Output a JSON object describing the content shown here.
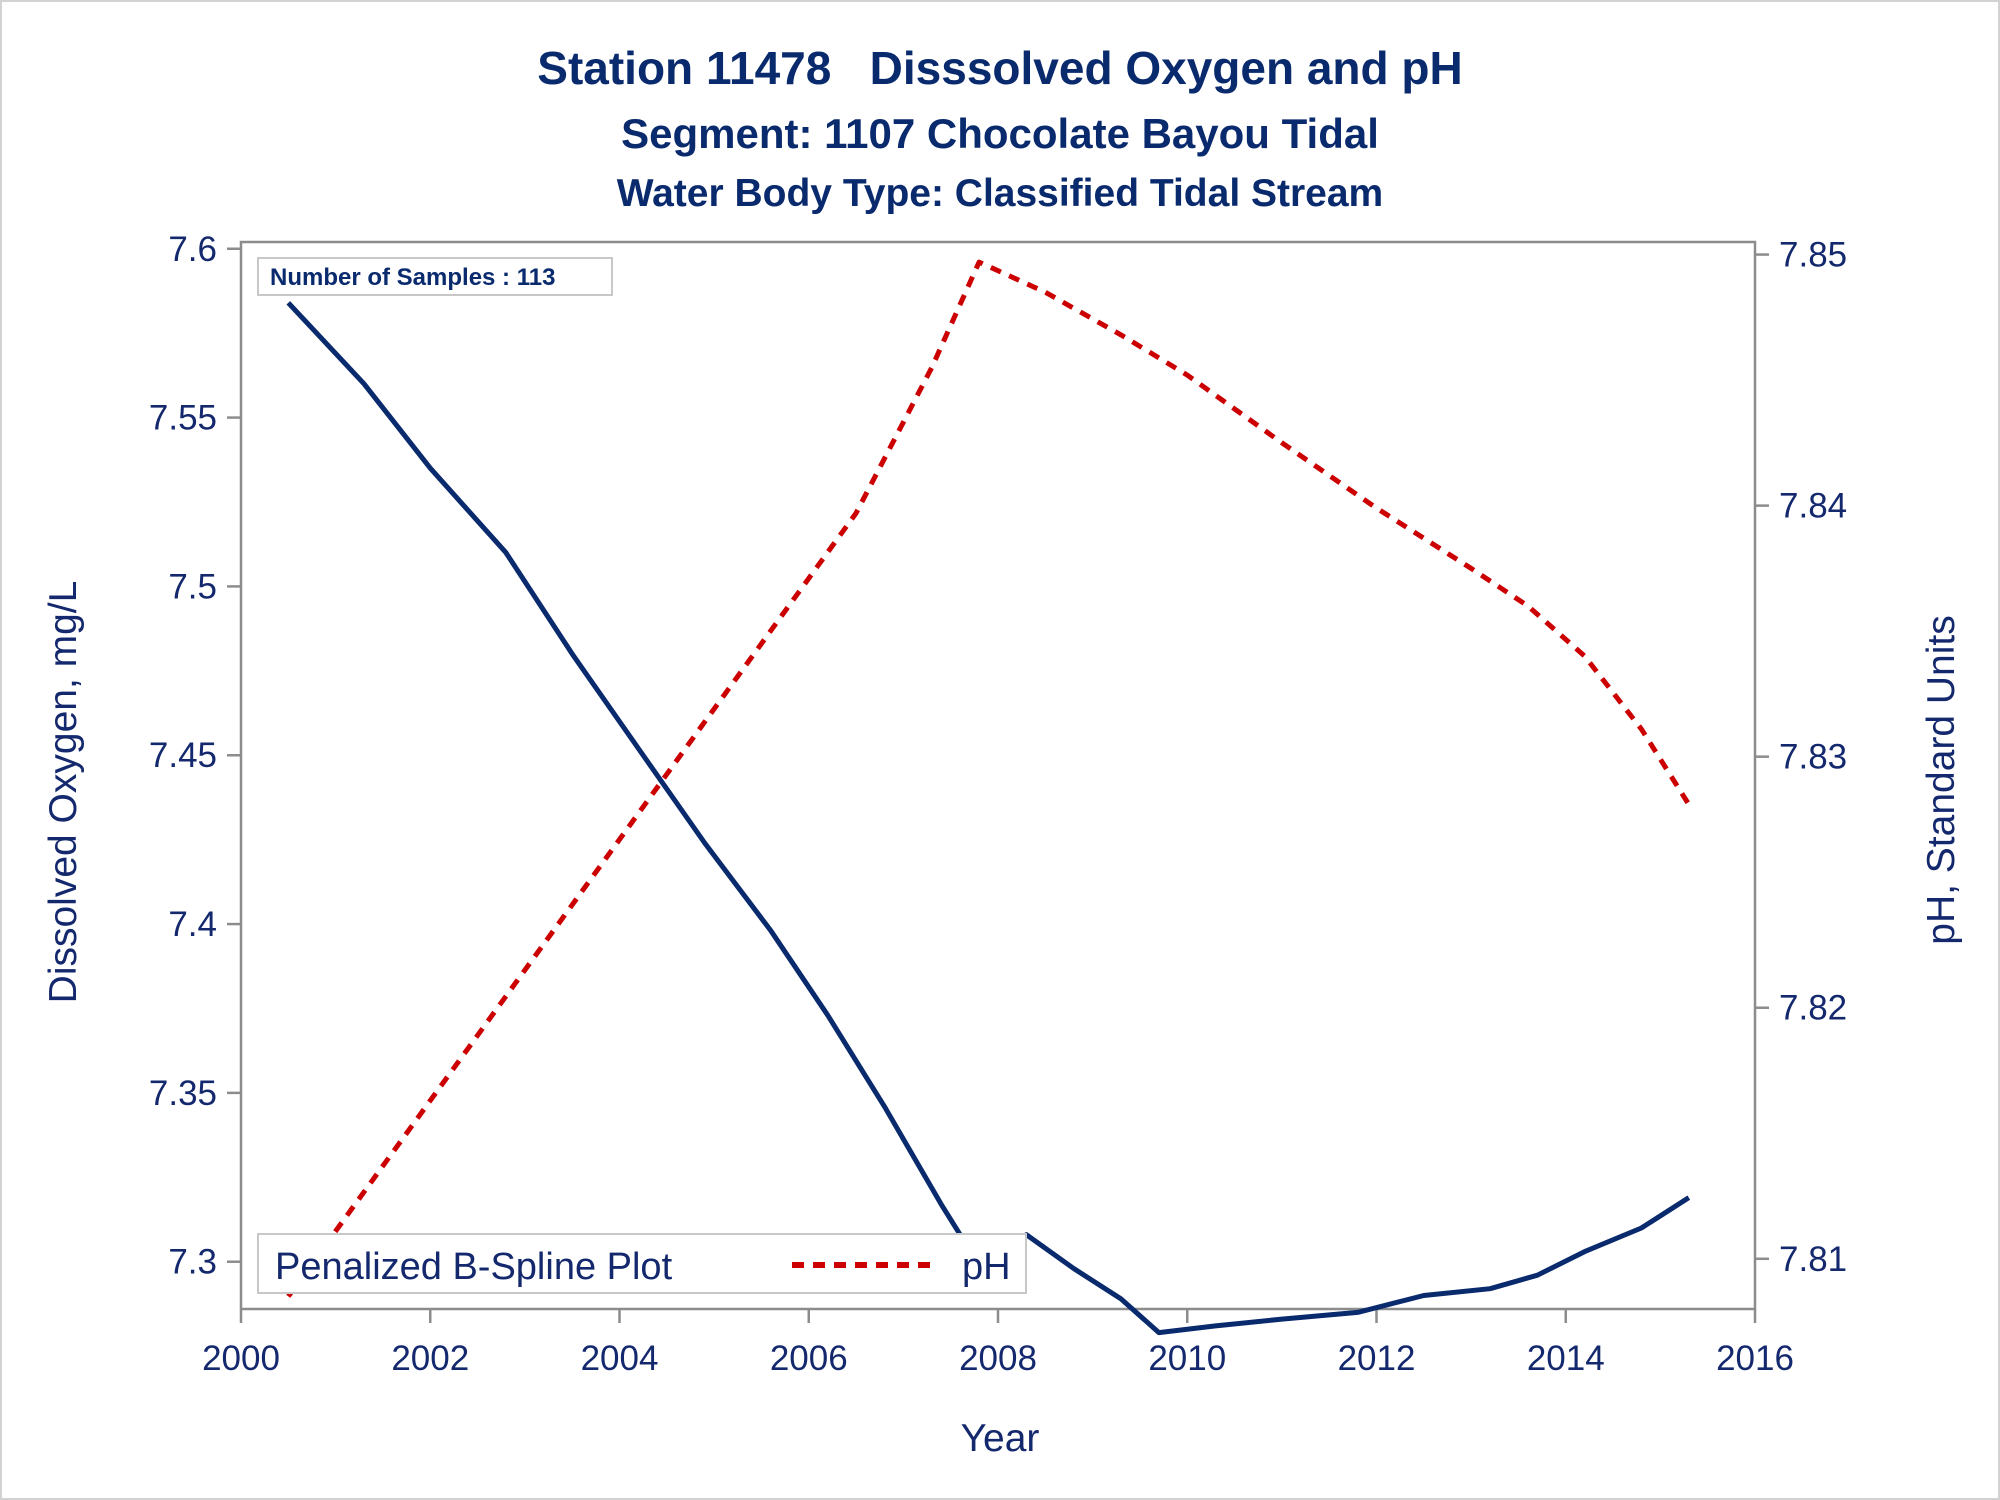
{
  "titles": {
    "main": "Station 11478   Disssolved Oxygen and pH",
    "segment": "Segment: 1107  Chocolate Bayou Tidal",
    "water_body": "Water Body Type: Classified Tidal Stream"
  },
  "inset": {
    "text": "Number of Samples : 113"
  },
  "legend": {
    "title": "Penalized B-Spline Plot",
    "items": [
      {
        "label": "pH",
        "color": "#cc0000",
        "style": "dashed"
      }
    ]
  },
  "colors": {
    "do_line": "#0a2a6e",
    "ph_line": "#cc0000",
    "axis": "#8c8c8c",
    "text": "#14286e"
  },
  "chart_data": {
    "type": "line",
    "xlabel": "Year",
    "ylabel_left": "Dissolved Oxygen, mg/L",
    "ylabel_right": "pH, Standard Units",
    "xlim": [
      2000,
      2016
    ],
    "ylim_left": [
      7.286,
      7.602
    ],
    "ylim_right": [
      7.808,
      7.8505
    ],
    "x_ticks": [
      "2000",
      "2002",
      "2004",
      "2006",
      "2008",
      "2010",
      "2012",
      "2014",
      "2016"
    ],
    "y_left_ticks": [
      "7.3",
      "7.35",
      "7.4",
      "7.45",
      "7.5",
      "7.55",
      "7.6"
    ],
    "y_right_ticks": [
      "7.81",
      "7.82",
      "7.83",
      "7.84",
      "7.85"
    ],
    "series": [
      {
        "axis": "left",
        "style": "solid",
        "x": [
          2000.5,
          2001.3,
          2002.0,
          2002.8,
          2003.5,
          2004.2,
          2004.9,
          2005.6,
          2006.2,
          2006.8,
          2007.4,
          2007.8,
          2008.3,
          2008.8,
          2009.3,
          2009.7,
          2010.3,
          2011.0,
          2011.8,
          2012.5,
          2013.2,
          2013.7,
          2014.2,
          2014.8,
          2015.3
        ],
        "y": [
          7.584,
          7.56,
          7.535,
          7.51,
          7.48,
          7.452,
          7.424,
          7.398,
          7.373,
          7.346,
          7.317,
          7.299,
          7.308,
          7.298,
          7.289,
          7.279,
          7.281,
          7.283,
          7.285,
          7.29,
          7.292,
          7.296,
          7.303,
          7.31,
          7.319
        ]
      },
      {
        "name": "pH",
        "axis": "right",
        "style": "dashed",
        "x": [
          2000.5,
          2001.5,
          2002.5,
          2003.5,
          2004.5,
          2005.5,
          2006.5,
          2007.3,
          2007.8,
          2008.5,
          2009.3,
          2010.0,
          2011.0,
          2012.0,
          2013.0,
          2013.6,
          2014.2,
          2014.8,
          2015.3
        ],
        "y": [
          7.8085,
          7.8137,
          7.8189,
          7.8241,
          7.8293,
          7.8345,
          7.8397,
          7.8455,
          7.8497,
          7.8485,
          7.8468,
          7.8452,
          7.8425,
          7.8399,
          7.8375,
          7.836,
          7.834,
          7.8311,
          7.8281
        ]
      }
    ],
    "grid": false,
    "legend_position": "bottom-left inside"
  }
}
